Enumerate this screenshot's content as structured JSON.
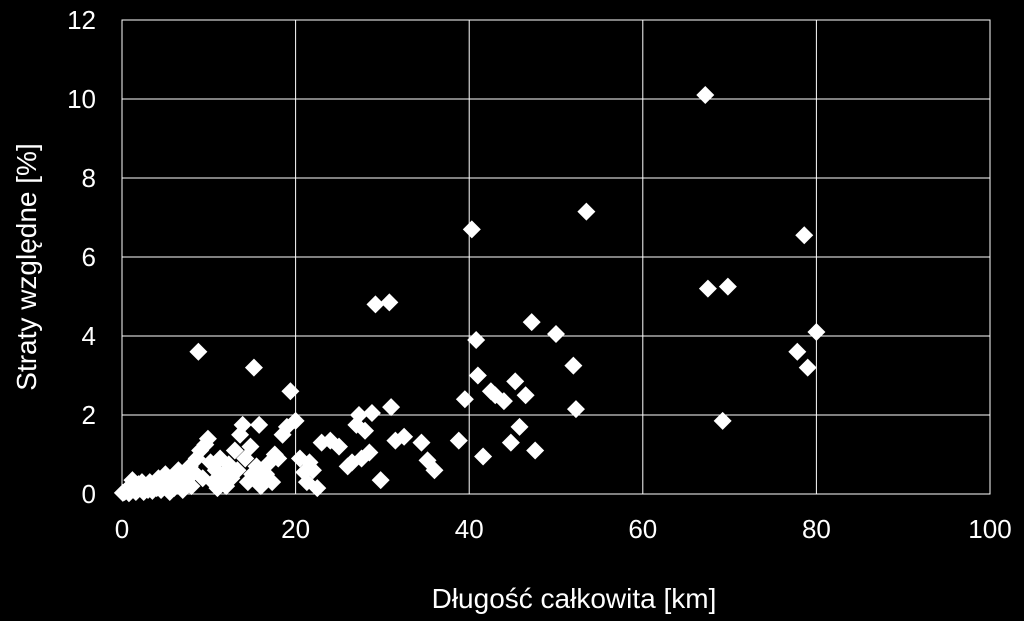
{
  "chart_data": {
    "type": "scatter",
    "title": "",
    "xlabel": "Długość całkowita [km]",
    "ylabel": "Straty względne [%]",
    "xlim": [
      0,
      100
    ],
    "ylim": [
      0,
      12
    ],
    "x_ticks": [
      "0",
      "20",
      "40",
      "60",
      "80",
      "100"
    ],
    "y_ticks": [
      "0",
      "2",
      "4",
      "6",
      "8",
      "10",
      "12"
    ],
    "grid": true,
    "marker": "diamond",
    "colors": {
      "background": "#000000",
      "marker": "#ffffff",
      "grid": "#ffffff"
    },
    "series": [
      {
        "points": [
          [
            0.1,
            0.03
          ],
          [
            0.3,
            0.05
          ],
          [
            0.5,
            0.1
          ],
          [
            0.8,
            0.02
          ],
          [
            1.0,
            0.2
          ],
          [
            1.2,
            0.35
          ],
          [
            1.4,
            0.1
          ],
          [
            1.6,
            0.05
          ],
          [
            1.9,
            0.25
          ],
          [
            2.1,
            0.15
          ],
          [
            2.3,
            0.3
          ],
          [
            2.5,
            0.05
          ],
          [
            2.8,
            0.2
          ],
          [
            3.0,
            0.1
          ],
          [
            3.2,
            0.3
          ],
          [
            3.5,
            0.08
          ],
          [
            3.8,
            0.25
          ],
          [
            4.0,
            0.15
          ],
          [
            4.2,
            0.4
          ],
          [
            4.5,
            0.1
          ],
          [
            4.8,
            0.3
          ],
          [
            5.0,
            0.5
          ],
          [
            5.2,
            0.2
          ],
          [
            5.5,
            0.05
          ],
          [
            5.8,
            0.35
          ],
          [
            6.0,
            0.15
          ],
          [
            6.2,
            0.45
          ],
          [
            6.5,
            0.6
          ],
          [
            6.8,
            0.25
          ],
          [
            7.0,
            0.1
          ],
          [
            7.2,
            0.5
          ],
          [
            7.5,
            0.3
          ],
          [
            7.8,
            0.7
          ],
          [
            8.0,
            0.2
          ],
          [
            8.3,
            0.55
          ],
          [
            8.6,
            0.9
          ],
          [
            8.8,
            3.6
          ],
          [
            9.0,
            1.1
          ],
          [
            9.3,
            0.4
          ],
          [
            9.6,
            1.25
          ],
          [
            9.9,
            1.4
          ],
          [
            10.2,
            0.8
          ],
          [
            10.5,
            0.3
          ],
          [
            10.8,
            0.6
          ],
          [
            11.0,
            0.15
          ],
          [
            11.3,
            0.9
          ],
          [
            11.6,
            0.5
          ],
          [
            12.0,
            0.2
          ],
          [
            12.3,
            0.75
          ],
          [
            12.6,
            0.4
          ],
          [
            13.0,
            1.1
          ],
          [
            13.3,
            0.6
          ],
          [
            13.6,
            1.5
          ],
          [
            13.9,
            1.75
          ],
          [
            14.2,
            0.9
          ],
          [
            14.5,
            0.3
          ],
          [
            14.8,
            1.2
          ],
          [
            15.0,
            0.5
          ],
          [
            15.2,
            3.2
          ],
          [
            15.5,
            0.7
          ],
          [
            15.8,
            1.75
          ],
          [
            16.0,
            0.2
          ],
          [
            16.2,
            0.35
          ],
          [
            16.6,
            0.5
          ],
          [
            17.0,
            0.8
          ],
          [
            17.3,
            0.3
          ],
          [
            17.6,
            1.0
          ],
          [
            18.0,
            0.9
          ],
          [
            18.5,
            1.5
          ],
          [
            19.0,
            1.7
          ],
          [
            19.4,
            2.6
          ],
          [
            20.0,
            1.85
          ],
          [
            20.5,
            0.9
          ],
          [
            21.0,
            0.55
          ],
          [
            21.3,
            0.3
          ],
          [
            21.6,
            0.8
          ],
          [
            22.0,
            0.6
          ],
          [
            22.5,
            0.15
          ],
          [
            23.0,
            1.3
          ],
          [
            24.0,
            1.35
          ],
          [
            25.0,
            1.2
          ],
          [
            26.0,
            0.7
          ],
          [
            26.5,
            0.8
          ],
          [
            27.0,
            1.75
          ],
          [
            27.3,
            2.0
          ],
          [
            27.6,
            0.9
          ],
          [
            28.0,
            1.6
          ],
          [
            28.5,
            1.05
          ],
          [
            28.8,
            2.05
          ],
          [
            29.2,
            4.8
          ],
          [
            29.8,
            0.35
          ],
          [
            30.8,
            4.85
          ],
          [
            31.0,
            2.2
          ],
          [
            31.5,
            1.35
          ],
          [
            32.5,
            1.45
          ],
          [
            34.5,
            1.3
          ],
          [
            35.2,
            0.85
          ],
          [
            36.0,
            0.6
          ],
          [
            38.8,
            1.35
          ],
          [
            39.5,
            2.4
          ],
          [
            40.3,
            6.7
          ],
          [
            40.8,
            3.9
          ],
          [
            41.0,
            3.0
          ],
          [
            41.6,
            0.95
          ],
          [
            42.5,
            2.6
          ],
          [
            43.0,
            2.5
          ],
          [
            44.0,
            2.35
          ],
          [
            44.8,
            1.3
          ],
          [
            45.3,
            2.85
          ],
          [
            45.8,
            1.7
          ],
          [
            46.5,
            2.5
          ],
          [
            47.2,
            4.35
          ],
          [
            47.6,
            1.1
          ],
          [
            50.0,
            4.05
          ],
          [
            52.0,
            3.25
          ],
          [
            52.3,
            2.15
          ],
          [
            53.5,
            7.15
          ],
          [
            67.2,
            10.1
          ],
          [
            67.5,
            5.2
          ],
          [
            69.2,
            1.85
          ],
          [
            69.8,
            5.25
          ],
          [
            77.8,
            3.6
          ],
          [
            78.6,
            6.55
          ],
          [
            79.0,
            3.2
          ],
          [
            80.0,
            4.1
          ]
        ]
      }
    ]
  }
}
